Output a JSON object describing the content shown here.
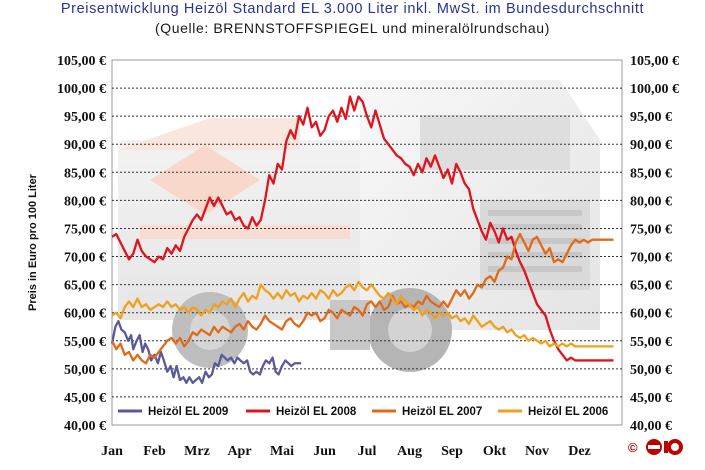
{
  "chart_data": {
    "type": "line",
    "title": "Preisentwicklung Heizöl Standard EL 3.000 Liter inkl. MwSt. im Bundesdurchschnitt",
    "subtitle": "(Quelle: BRENNSTOFFSPIEGEL und mineralölrundschau)",
    "ylabel": "Preis in Euro pro 100 Liter",
    "xlabel": "",
    "categories": [
      "Jan",
      "Feb",
      "Mrz",
      "Apr",
      "Mai",
      "Jun",
      "Jul",
      "Aug",
      "Sep",
      "Okt",
      "Nov",
      "Dez"
    ],
    "yticks": [
      "40,00 €",
      "45,00 €",
      "50,00 €",
      "55,00 €",
      "60,00 €",
      "65,00 €",
      "70,00 €",
      "75,00 €",
      "80,00 €",
      "85,00 €",
      "90,00 €",
      "95,00 €",
      "100,00 €",
      "105,00 €"
    ],
    "ylim": [
      40,
      105
    ],
    "grid": true,
    "legend_position": "bottom-inside",
    "series": [
      {
        "name": "Heizöl EL 2009",
        "color": "#5a5a9a",
        "x": [
          0,
          0.08,
          0.15,
          0.22,
          0.3,
          0.38,
          0.45,
          0.5,
          0.58,
          0.65,
          0.72,
          0.78,
          0.85,
          0.92,
          1.0,
          1.08,
          1.15,
          1.22,
          1.3,
          1.38,
          1.45,
          1.52,
          1.6,
          1.68,
          1.75,
          1.82,
          1.9,
          1.97,
          2.05,
          2.12,
          2.2,
          2.28,
          2.35,
          2.42,
          2.5,
          2.58,
          2.65,
          2.72,
          2.8,
          2.88,
          2.95,
          3.02,
          3.1,
          3.18,
          3.25,
          3.32,
          3.4,
          3.48,
          3.55,
          3.62,
          3.7,
          3.78,
          3.85,
          3.92,
          4.0,
          4.08,
          4.15,
          4.22,
          4.3,
          4.38,
          4.45
        ],
        "values": [
          54.5,
          57.5,
          58.5,
          57.0,
          56.5,
          55.0,
          56.0,
          53.5,
          55.0,
          56.0,
          53.0,
          54.5,
          53.5,
          51.5,
          52.5,
          51.0,
          53.0,
          51.5,
          49.5,
          50.5,
          48.5,
          50.5,
          48.0,
          48.5,
          47.5,
          48.5,
          47.5,
          48.0,
          48.5,
          47.5,
          49.5,
          48.5,
          49.0,
          51.0,
          50.5,
          52.5,
          52.0,
          51.5,
          52.0,
          51.0,
          52.0,
          51.5,
          51.0,
          51.5,
          49.5,
          49.0,
          49.5,
          49.0,
          50.5,
          51.5,
          51.0,
          52.0,
          49.5,
          49.0,
          50.5,
          51.5,
          51.0,
          50.5,
          51.0,
          51.0,
          51.0
        ]
      },
      {
        "name": "Heizöl EL 2008",
        "color": "#e0141e",
        "x": [
          0,
          0.1,
          0.2,
          0.3,
          0.4,
          0.5,
          0.6,
          0.7,
          0.8,
          0.9,
          1.0,
          1.1,
          1.2,
          1.3,
          1.4,
          1.5,
          1.6,
          1.7,
          1.8,
          1.9,
          2.0,
          2.1,
          2.2,
          2.3,
          2.4,
          2.5,
          2.6,
          2.7,
          2.8,
          2.9,
          3.0,
          3.1,
          3.2,
          3.3,
          3.4,
          3.5,
          3.6,
          3.7,
          3.8,
          3.9,
          4.0,
          4.1,
          4.2,
          4.3,
          4.4,
          4.5,
          4.6,
          4.7,
          4.8,
          4.9,
          5.0,
          5.1,
          5.2,
          5.3,
          5.4,
          5.5,
          5.6,
          5.7,
          5.8,
          5.9,
          6.0,
          6.1,
          6.2,
          6.3,
          6.4,
          6.5,
          6.6,
          6.7,
          6.8,
          6.9,
          7.0,
          7.1,
          7.2,
          7.3,
          7.4,
          7.5,
          7.6,
          7.7,
          7.8,
          7.9,
          8.0,
          8.1,
          8.2,
          8.3,
          8.4,
          8.5,
          8.6,
          8.7,
          8.8,
          8.9,
          9.0,
          9.1,
          9.2,
          9.3,
          9.4,
          9.5,
          9.6,
          9.7,
          9.8,
          9.9,
          10.0,
          10.1,
          10.2,
          10.3,
          10.4,
          10.5,
          10.6,
          10.7,
          10.8,
          10.9,
          11.0,
          11.1,
          11.2,
          11.3,
          11.4,
          11.5
        ],
        "values": [
          73.5,
          74.0,
          72.5,
          71.0,
          69.5,
          70.5,
          73.0,
          71.0,
          70.0,
          69.5,
          69.0,
          70.0,
          69.5,
          71.5,
          70.5,
          72.0,
          71.0,
          73.5,
          75.0,
          76.5,
          77.5,
          76.5,
          78.5,
          80.5,
          79.0,
          80.5,
          79.0,
          77.5,
          78.0,
          76.5,
          77.0,
          75.5,
          75.0,
          77.0,
          75.5,
          76.5,
          80.0,
          84.5,
          83.0,
          86.5,
          85.5,
          90.5,
          92.5,
          91.0,
          95.0,
          93.5,
          96.5,
          93.0,
          94.0,
          91.5,
          92.5,
          95.0,
          96.0,
          94.0,
          96.5,
          94.5,
          98.5,
          96.0,
          98.5,
          97.5,
          95.0,
          93.0,
          96.0,
          93.5,
          91.0,
          90.0,
          89.0,
          88.0,
          87.5,
          86.5,
          86.0,
          84.5,
          86.5,
          85.0,
          87.5,
          86.0,
          88.0,
          86.0,
          84.0,
          85.5,
          83.0,
          86.5,
          85.0,
          83.0,
          82.0,
          78.5,
          76.5,
          74.5,
          73.0,
          76.0,
          74.5,
          72.5,
          75.0,
          73.0,
          73.5,
          71.0,
          69.0,
          67.5,
          65.5,
          63.5,
          61.5,
          60.5,
          59.5,
          57.0,
          55.0,
          53.5,
          52.5,
          51.5,
          52.0,
          51.5,
          51.5,
          51.5,
          51.5,
          51.5,
          51.5,
          51.5
        ],
        "extend_to": 11.8
      },
      {
        "name": "Heizöl EL 2007",
        "color": "#e06a1a",
        "x": [
          0,
          0.1,
          0.2,
          0.3,
          0.4,
          0.5,
          0.6,
          0.7,
          0.8,
          0.9,
          1.0,
          1.1,
          1.2,
          1.3,
          1.4,
          1.5,
          1.6,
          1.7,
          1.8,
          1.9,
          2.0,
          2.1,
          2.2,
          2.3,
          2.4,
          2.5,
          2.6,
          2.7,
          2.8,
          2.9,
          3.0,
          3.1,
          3.2,
          3.3,
          3.4,
          3.5,
          3.6,
          3.7,
          3.8,
          3.9,
          4.0,
          4.1,
          4.2,
          4.3,
          4.4,
          4.5,
          4.6,
          4.7,
          4.8,
          4.9,
          5.0,
          5.1,
          5.2,
          5.3,
          5.4,
          5.5,
          5.6,
          5.7,
          5.8,
          5.9,
          6.0,
          6.1,
          6.2,
          6.3,
          6.4,
          6.5,
          6.6,
          6.7,
          6.8,
          6.9,
          7.0,
          7.1,
          7.2,
          7.3,
          7.4,
          7.5,
          7.6,
          7.7,
          7.8,
          7.9,
          8.0,
          8.1,
          8.2,
          8.3,
          8.4,
          8.5,
          8.6,
          8.7,
          8.8,
          8.9,
          9.0,
          9.1,
          9.2,
          9.3,
          9.4,
          9.5,
          9.6,
          9.7,
          9.8,
          9.9,
          10.0,
          10.1,
          10.2,
          10.3,
          10.4,
          10.5,
          10.6,
          10.7,
          10.8,
          10.9,
          11.0,
          11.1,
          11.2,
          11.3,
          11.4,
          11.5
        ],
        "values": [
          55.0,
          53.5,
          54.5,
          52.5,
          53.0,
          51.5,
          52.5,
          51.5,
          51.0,
          52.5,
          52.0,
          53.0,
          54.0,
          55.0,
          55.5,
          54.5,
          55.5,
          54.0,
          55.0,
          56.5,
          56.0,
          57.0,
          56.5,
          56.0,
          57.5,
          56.5,
          57.5,
          57.0,
          56.5,
          57.5,
          58.0,
          57.0,
          58.5,
          57.5,
          57.0,
          58.0,
          59.5,
          58.5,
          58.0,
          57.5,
          57.0,
          58.5,
          59.0,
          58.0,
          57.5,
          58.5,
          60.0,
          59.5,
          60.0,
          58.5,
          59.0,
          60.5,
          60.0,
          59.0,
          60.5,
          60.0,
          59.5,
          61.0,
          60.5,
          59.5,
          61.5,
          62.0,
          61.0,
          62.0,
          60.5,
          61.0,
          63.0,
          61.5,
          62.0,
          61.0,
          61.5,
          61.0,
          62.0,
          61.5,
          63.0,
          62.0,
          61.5,
          61.0,
          62.0,
          61.0,
          62.5,
          64.0,
          63.0,
          64.0,
          62.5,
          63.5,
          65.0,
          64.5,
          66.0,
          66.5,
          65.5,
          67.5,
          68.0,
          70.0,
          69.5,
          72.5,
          74.0,
          72.5,
          71.0,
          73.0,
          73.5,
          72.0,
          70.5,
          71.5,
          69.0,
          69.5,
          69.0,
          70.5,
          72.0,
          73.0,
          72.5,
          73.0,
          72.5,
          73.0,
          73.0,
          73.0
        ],
        "extend_to": 11.8
      },
      {
        "name": "Heizöl EL 2006",
        "color": "#f0a01e",
        "x": [
          0,
          0.1,
          0.2,
          0.3,
          0.4,
          0.5,
          0.6,
          0.7,
          0.8,
          0.9,
          1.0,
          1.1,
          1.2,
          1.3,
          1.4,
          1.5,
          1.6,
          1.7,
          1.8,
          1.9,
          2.0,
          2.1,
          2.2,
          2.3,
          2.4,
          2.5,
          2.6,
          2.7,
          2.8,
          2.9,
          3.0,
          3.1,
          3.2,
          3.3,
          3.4,
          3.5,
          3.6,
          3.7,
          3.8,
          3.9,
          4.0,
          4.1,
          4.2,
          4.3,
          4.4,
          4.5,
          4.6,
          4.7,
          4.8,
          4.9,
          5.0,
          5.1,
          5.2,
          5.3,
          5.4,
          5.5,
          5.6,
          5.7,
          5.8,
          5.9,
          6.0,
          6.1,
          6.2,
          6.3,
          6.4,
          6.5,
          6.6,
          6.7,
          6.8,
          6.9,
          7.0,
          7.1,
          7.2,
          7.3,
          7.4,
          7.5,
          7.6,
          7.7,
          7.8,
          7.9,
          8.0,
          8.1,
          8.2,
          8.3,
          8.4,
          8.5,
          8.6,
          8.7,
          8.8,
          8.9,
          9.0,
          9.1,
          9.2,
          9.3,
          9.4,
          9.5,
          9.6,
          9.7,
          9.8,
          9.9,
          10.0,
          10.1,
          10.2,
          10.3,
          10.4,
          10.5,
          10.6,
          10.7,
          10.8,
          10.9,
          11.0,
          11.1,
          11.2,
          11.3,
          11.4,
          11.5
        ],
        "values": [
          59.5,
          60.0,
          59.0,
          61.0,
          62.0,
          61.0,
          62.5,
          61.0,
          61.5,
          60.5,
          61.0,
          61.5,
          61.0,
          62.0,
          61.0,
          61.5,
          60.5,
          61.0,
          60.0,
          61.0,
          60.5,
          59.5,
          60.5,
          60.0,
          61.5,
          61.0,
          62.0,
          61.5,
          62.5,
          61.0,
          62.5,
          63.5,
          62.0,
          63.0,
          62.5,
          65.0,
          64.0,
          63.5,
          62.5,
          63.5,
          62.5,
          64.0,
          63.0,
          63.5,
          62.0,
          63.0,
          62.5,
          63.5,
          62.5,
          64.0,
          63.5,
          62.5,
          64.0,
          63.0,
          63.5,
          64.5,
          65.0,
          64.0,
          65.5,
          64.5,
          64.0,
          65.0,
          64.0,
          63.0,
          62.5,
          63.5,
          62.5,
          61.5,
          63.0,
          62.0,
          61.5,
          60.5,
          61.0,
          59.5,
          60.5,
          60.0,
          59.0,
          60.0,
          59.5,
          60.0,
          59.0,
          59.5,
          58.5,
          59.0,
          58.0,
          59.5,
          58.5,
          57.5,
          58.0,
          58.5,
          57.5,
          57.0,
          57.5,
          56.5,
          57.0,
          56.0,
          55.5,
          56.0,
          55.0,
          55.5,
          55.0,
          54.5,
          55.0,
          54.0,
          54.5,
          54.0,
          54.5,
          54.0,
          54.5,
          54.0,
          54.0,
          54.0,
          54.0,
          54.0,
          54.0,
          54.0
        ],
        "extend_to": 11.8
      }
    ],
    "copyright_symbol": "©"
  }
}
